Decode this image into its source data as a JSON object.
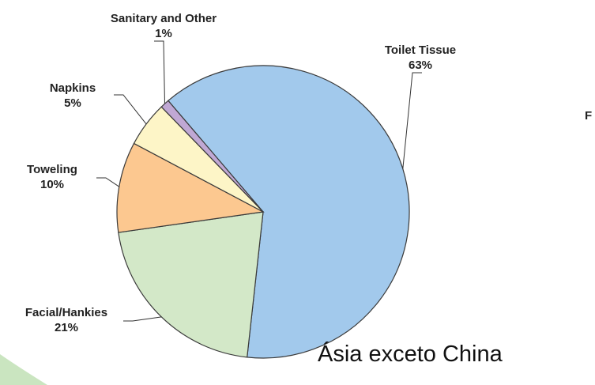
{
  "chart_data": {
    "type": "pie",
    "title": "",
    "slices": [
      {
        "label": "Toilet Tissue",
        "value": 63,
        "display": "63%",
        "color": "#a2c9ec"
      },
      {
        "label": "Facial/Hankies",
        "value": 21,
        "display": "21%",
        "color": "#d3e8c8"
      },
      {
        "label": "Toweling",
        "value": 10,
        "display": "10%",
        "color": "#fcc890"
      },
      {
        "label": "Napkins",
        "value": 5,
        "display": "5%",
        "color": "#fdf5c7"
      },
      {
        "label": "Sanitary and Other",
        "value": 1,
        "display": "1%",
        "color": "#c0a8d4"
      }
    ],
    "slice_border_color": "#3a3a3a"
  },
  "caption": "Ásia exceto China",
  "edge_label": "F",
  "accent_color": "#9ed08c"
}
